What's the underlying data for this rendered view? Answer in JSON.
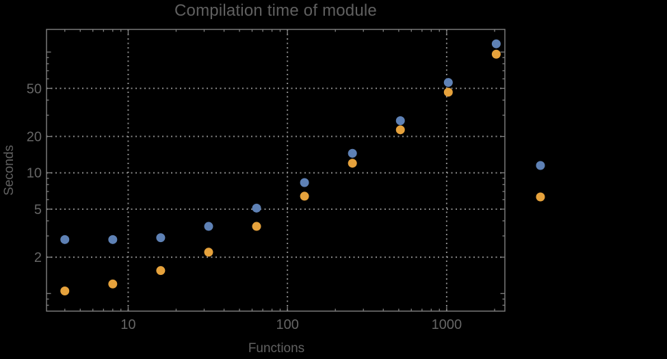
{
  "chart_data": {
    "type": "scatter",
    "title": "Compilation time of module",
    "xlabel": "Functions",
    "ylabel": "Seconds",
    "x_scale": "log",
    "y_scale": "log",
    "xlim": [
      3.07,
      2320
    ],
    "ylim": [
      0.715,
      154
    ],
    "grid": "dotted",
    "x_gridlines": [
      10,
      100,
      1000
    ],
    "y_gridlines": [
      2,
      5,
      10,
      20,
      50
    ],
    "x_ticks_major": [
      10,
      100,
      1000
    ],
    "x_tick_labels": [
      "10",
      "100",
      "1000"
    ],
    "x_ticks_minor": [
      4,
      5,
      6,
      7,
      8,
      9,
      20,
      30,
      40,
      50,
      60,
      70,
      80,
      90,
      200,
      300,
      400,
      500,
      600,
      700,
      800,
      900,
      2000
    ],
    "y_ticks_major": [
      2,
      5,
      10,
      20,
      50
    ],
    "y_tick_labels": [
      "2",
      "5",
      "10",
      "20",
      "50"
    ],
    "y_ticks_unlabeled_major": [
      1,
      100
    ],
    "y_ticks_minor": [
      0.8,
      0.9,
      3,
      4,
      6,
      7,
      8,
      9,
      30,
      40,
      60,
      70,
      80,
      90
    ],
    "x": [
      4,
      8,
      16,
      32,
      64,
      128,
      256,
      512,
      1024,
      2048
    ],
    "series": [
      {
        "color": "#5E81B5",
        "values": [
          2.8,
          2.8,
          2.9,
          3.6,
          5.1,
          8.3,
          14.5,
          27,
          56,
          117
        ]
      },
      {
        "color": "#E6A23C",
        "values": [
          1.05,
          1.2,
          1.55,
          2.2,
          3.6,
          6.4,
          12,
          22.7,
          46.5,
          96
        ]
      }
    ],
    "legend": {
      "position": "right-of-plot",
      "marker_colors": [
        "#5E81B5",
        "#E6A23C"
      ],
      "labels_visible": false
    },
    "colors": {
      "background": "#000000",
      "frame": "#828282",
      "grid": "#8a8a8a",
      "tick_labels": "#666666",
      "title": "#606060",
      "axis_labels": "#616161"
    }
  }
}
